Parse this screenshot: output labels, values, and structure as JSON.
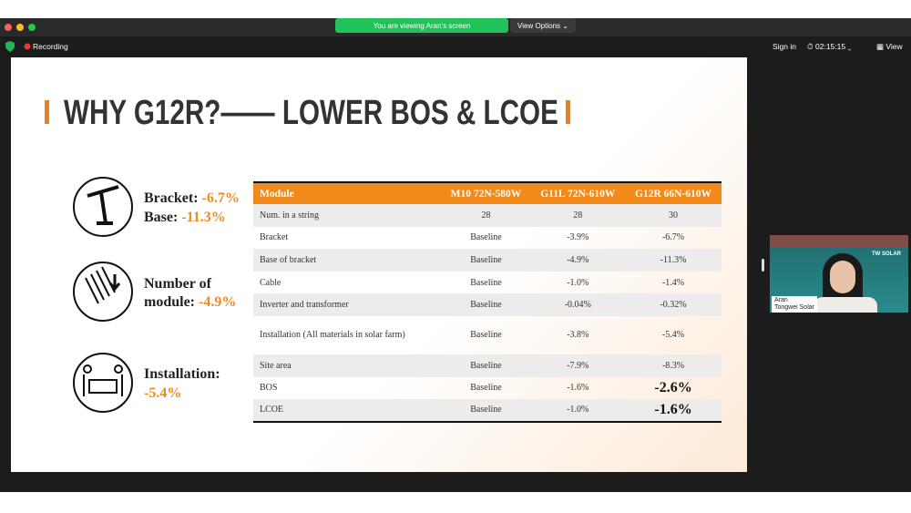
{
  "toolbar": {
    "share_notice": "You are viewing Aran's screen",
    "view_options": "View Options",
    "recording": "Recording",
    "sign_in": "Sign in",
    "clock": "02:15:15",
    "view": "View"
  },
  "slide": {
    "title": "WHY G12R?—— LOWER BOS & LCOE",
    "highlights": [
      {
        "lines": [
          {
            "label": "Bracket:",
            "value": "-6.7%"
          },
          {
            "label": "Base:",
            "value": "-11.3%"
          }
        ]
      },
      {
        "lines": [
          {
            "label": "Number of",
            "value": ""
          },
          {
            "label": "module:",
            "value": "-4.9%"
          }
        ]
      },
      {
        "lines": [
          {
            "label": "Installation:",
            "value": ""
          },
          {
            "label": "",
            "value": "-5.4%"
          }
        ]
      }
    ],
    "table": {
      "header": [
        "Module",
        "M10 72N-580W",
        "G11L 72N-610W",
        "G12R 66N-610W"
      ],
      "rows": [
        [
          "Num. in a string",
          "28",
          "28",
          "30"
        ],
        [
          "Bracket",
          "Baseline",
          "-3.9%",
          "-6.7%"
        ],
        [
          "Base of bracket",
          "Baseline",
          "-4.9%",
          "-11.3%"
        ],
        [
          "Cable",
          "Baseline",
          "-1.0%",
          "-1.4%"
        ],
        [
          "Inverter and transformer",
          "Baseline",
          "-0.04%",
          "-0.32%"
        ],
        [
          "Installation (All materials in solar farm)",
          "Baseline",
          "-3.8%",
          "-5.4%"
        ],
        [
          "Site area",
          "Baseline",
          "-7.9%",
          "-8.3%"
        ],
        [
          "BOS",
          "Baseline",
          "-1.6%",
          "-2.6%"
        ],
        [
          "LCOE",
          "Baseline",
          "-1.0%",
          "-1.6%"
        ]
      ]
    }
  },
  "participant": {
    "name": "Aran",
    "company": "Tongwei Solar",
    "logo": "TW SOLAR"
  }
}
